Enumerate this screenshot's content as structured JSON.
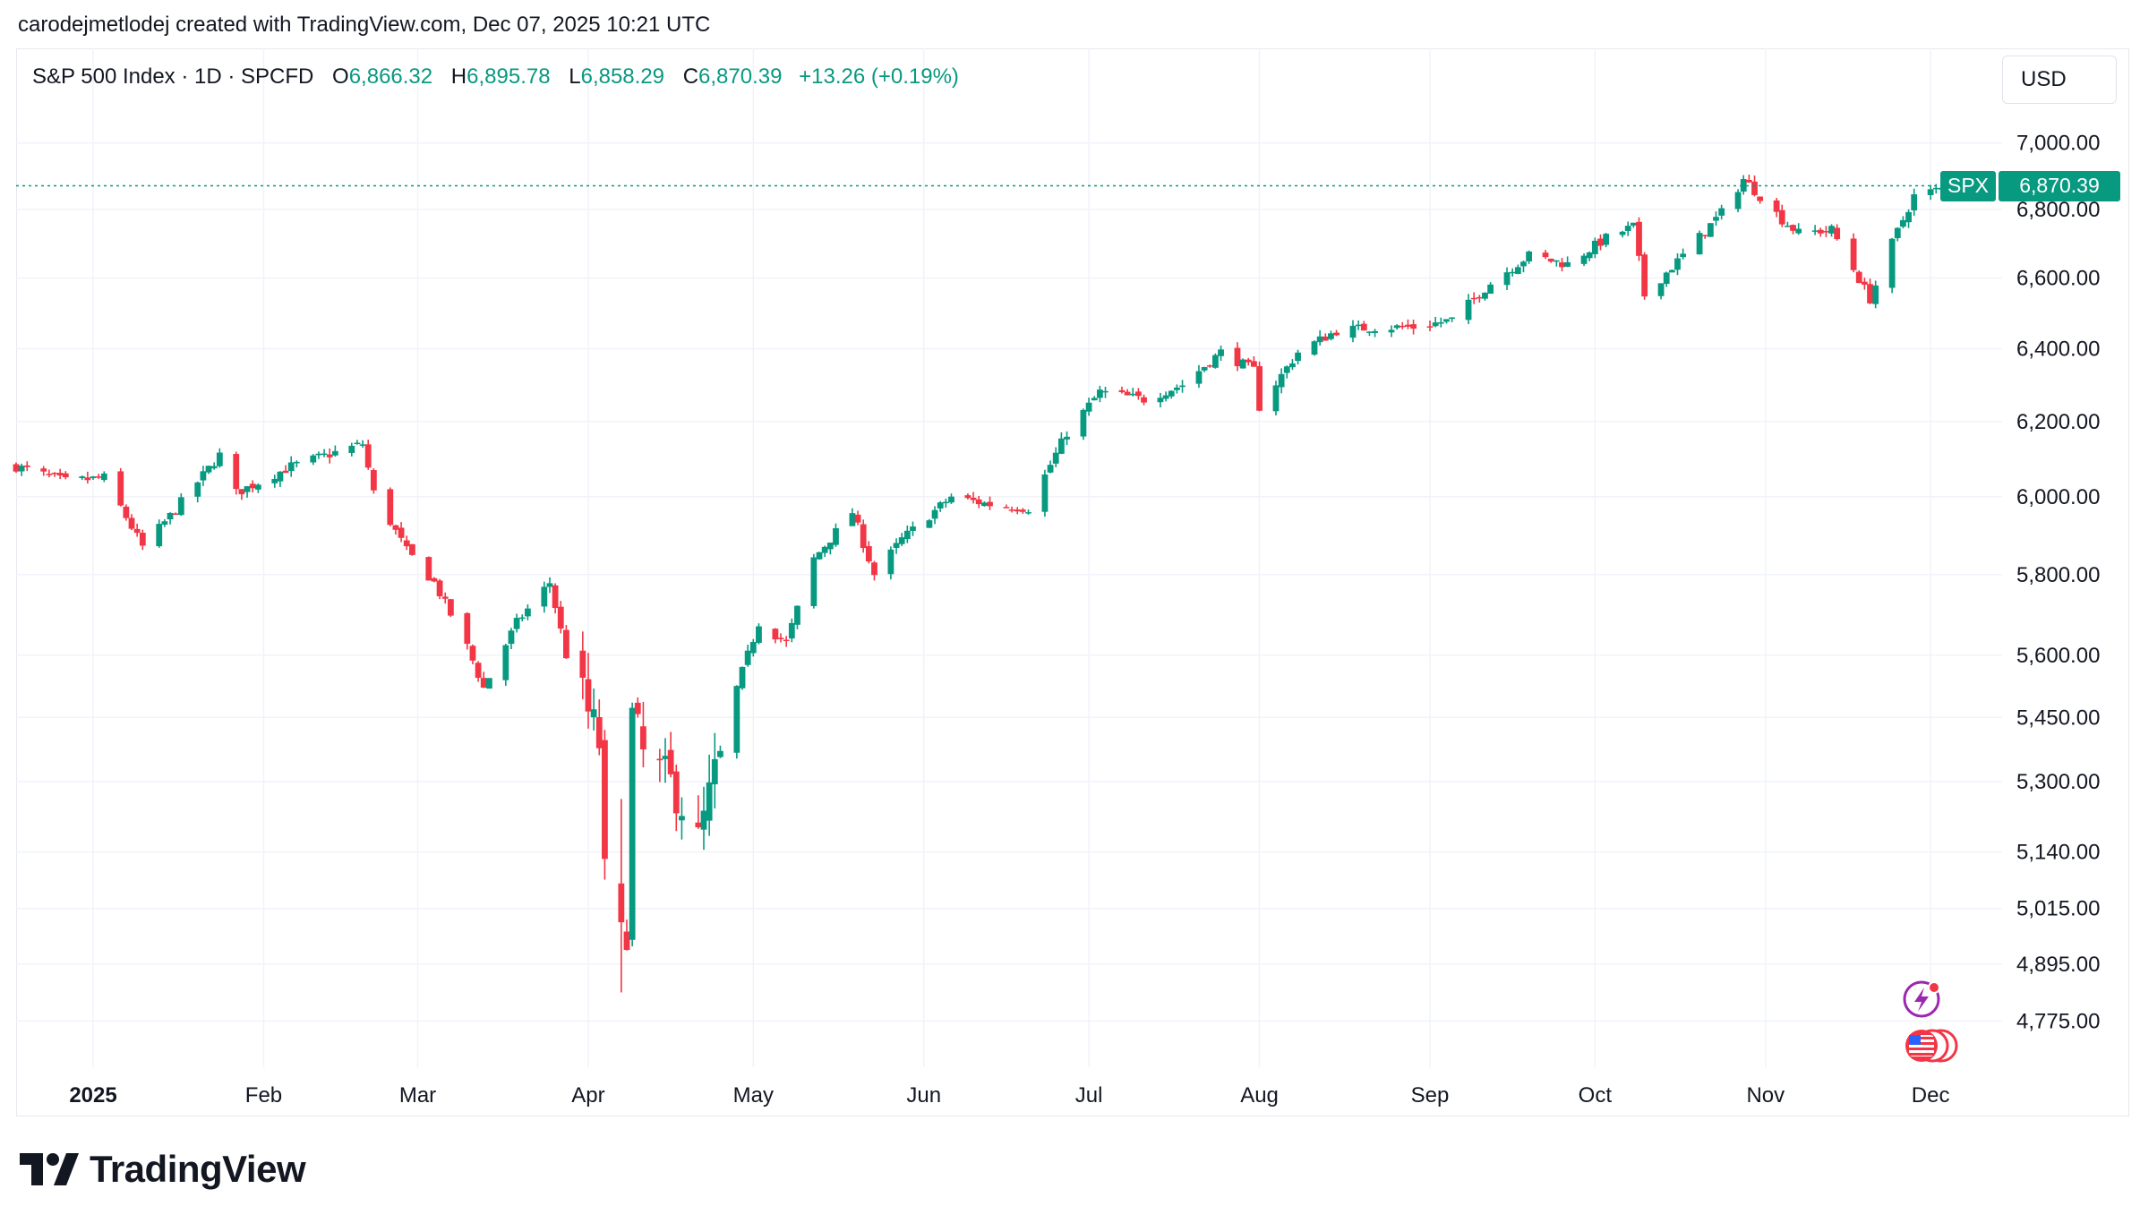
{
  "attribution": "carodejmetlodej created with TradingView.com, Dec 07, 2025 10:21 UTC",
  "legend": {
    "symbol_line": "S&P 500 Index · 1D · SPCFD",
    "open_label": "O",
    "open": "6,866.32",
    "high_label": "H",
    "high": "6,895.78",
    "low_label": "L",
    "low": "6,858.29",
    "close_label": "C",
    "close": "6,870.39",
    "change": "+13.26 (+0.19%)"
  },
  "currency": "USD",
  "last_price": {
    "symbol": "SPX",
    "value": "6,870.39",
    "numeric": 6870.39
  },
  "branding": "TradingView",
  "colors": {
    "up": "#089981",
    "down": "#f23645",
    "grid": "#f0f3fa",
    "text": "#131722",
    "event_purple": "#9c27b0",
    "event_red": "#f23645"
  },
  "icons": [
    "tradingview-logo-icon",
    "lightning-event-icon",
    "us-flag-event-icon"
  ],
  "chart_data": {
    "type": "candlestick",
    "title": "S&P 500 Index · 1D · SPCFD",
    "interval": "1D",
    "y_scale": "log",
    "ylim": [
      4680,
      7120
    ],
    "y_ticks": [
      7000,
      6800,
      6600,
      6400,
      6200,
      6000,
      5800,
      5600,
      5450,
      5300,
      5140,
      5015,
      4895,
      4775
    ],
    "y_tick_labels": [
      "7,000.00",
      "6,800.00",
      "6,600.00",
      "6,400.00",
      "6,200.00",
      "6,000.00",
      "5,800.00",
      "5,600.00",
      "5,450.00",
      "5,300.00",
      "5,140.00",
      "5,015.00",
      "4,895.00",
      "4,775.00"
    ],
    "x_range": [
      "2024-12-18",
      "2025-12-14"
    ],
    "x_ticks": [
      {
        "date": "2025-01-01",
        "label": "2025",
        "bold": true
      },
      {
        "date": "2025-02-01",
        "label": "Feb"
      },
      {
        "date": "2025-03-01",
        "label": "Mar"
      },
      {
        "date": "2025-04-01",
        "label": "Apr"
      },
      {
        "date": "2025-05-01",
        "label": "May"
      },
      {
        "date": "2025-06-01",
        "label": "Jun"
      },
      {
        "date": "2025-07-01",
        "label": "Jul"
      },
      {
        "date": "2025-08-01",
        "label": "Aug"
      },
      {
        "date": "2025-09-01",
        "label": "Sep"
      },
      {
        "date": "2025-10-01",
        "label": "Oct"
      },
      {
        "date": "2025-11-01",
        "label": "Nov"
      },
      {
        "date": "2025-12-01",
        "label": "Dec"
      }
    ],
    "grid": true,
    "close_path": [
      [
        "2024-12-18",
        6080
      ],
      [
        "2024-12-27",
        6040
      ],
      [
        "2025-01-03",
        6050
      ],
      [
        "2025-01-10",
        5870
      ],
      [
        "2025-01-15",
        5950
      ],
      [
        "2025-01-24",
        6110
      ],
      [
        "2025-01-27",
        6010
      ],
      [
        "2025-02-06",
        6080
      ],
      [
        "2025-02-19",
        6140
      ],
      [
        "2025-02-21",
        6010
      ],
      [
        "2025-02-27",
        5860
      ],
      [
        "2025-03-04",
        5780
      ],
      [
        "2025-03-10",
        5620
      ],
      [
        "2025-03-13",
        5520
      ],
      [
        "2025-03-19",
        5680
      ],
      [
        "2025-03-25",
        5780
      ],
      [
        "2025-03-28",
        5600
      ],
      [
        "2025-04-03",
        5390
      ],
      [
        "2025-04-04",
        5080
      ],
      [
        "2025-04-08",
        4980
      ],
      [
        "2025-04-09",
        5450
      ],
      [
        "2025-04-11",
        5360
      ],
      [
        "2025-04-17",
        5280
      ],
      [
        "2025-04-21",
        5160
      ],
      [
        "2025-04-28",
        5520
      ],
      [
        "2025-05-02",
        5680
      ],
      [
        "2025-05-07",
        5630
      ],
      [
        "2025-05-12",
        5840
      ],
      [
        "2025-05-19",
        5960
      ],
      [
        "2025-05-23",
        5800
      ],
      [
        "2025-05-28",
        5890
      ],
      [
        "2025-06-06",
        6000
      ],
      [
        "2025-06-13",
        5980
      ],
      [
        "2025-06-20",
        5970
      ],
      [
        "2025-06-27",
        6170
      ],
      [
        "2025-07-03",
        6280
      ],
      [
        "2025-07-11",
        6260
      ],
      [
        "2025-07-18",
        6300
      ],
      [
        "2025-07-25",
        6390
      ],
      [
        "2025-07-31",
        6340
      ],
      [
        "2025-08-01",
        6240
      ],
      [
        "2025-08-08",
        6390
      ],
      [
        "2025-08-15",
        6450
      ],
      [
        "2025-08-22",
        6460
      ],
      [
        "2025-08-29",
        6460
      ],
      [
        "2025-09-05",
        6480
      ],
      [
        "2025-09-12",
        6585
      ],
      [
        "2025-09-19",
        6665
      ],
      [
        "2025-09-26",
        6640
      ],
      [
        "2025-10-03",
        6715
      ],
      [
        "2025-10-08",
        6750
      ],
      [
        "2025-10-10",
        6550
      ],
      [
        "2025-10-17",
        6665
      ],
      [
        "2025-10-24",
        6790
      ],
      [
        "2025-10-28",
        6890
      ],
      [
        "2025-10-31",
        6840
      ],
      [
        "2025-11-04",
        6770
      ],
      [
        "2025-11-07",
        6730
      ],
      [
        "2025-11-13",
        6740
      ],
      [
        "2025-11-20",
        6540
      ],
      [
        "2025-11-24",
        6700
      ],
      [
        "2025-11-28",
        6840
      ],
      [
        "2025-12-05",
        6870
      ]
    ],
    "last_candle": {
      "date": "2025-12-05",
      "open": 6866.32,
      "high": 6895.78,
      "low": 6858.29,
      "close": 6870.39
    },
    "low_point": {
      "date": "2025-04-07",
      "low": 4835
    }
  }
}
